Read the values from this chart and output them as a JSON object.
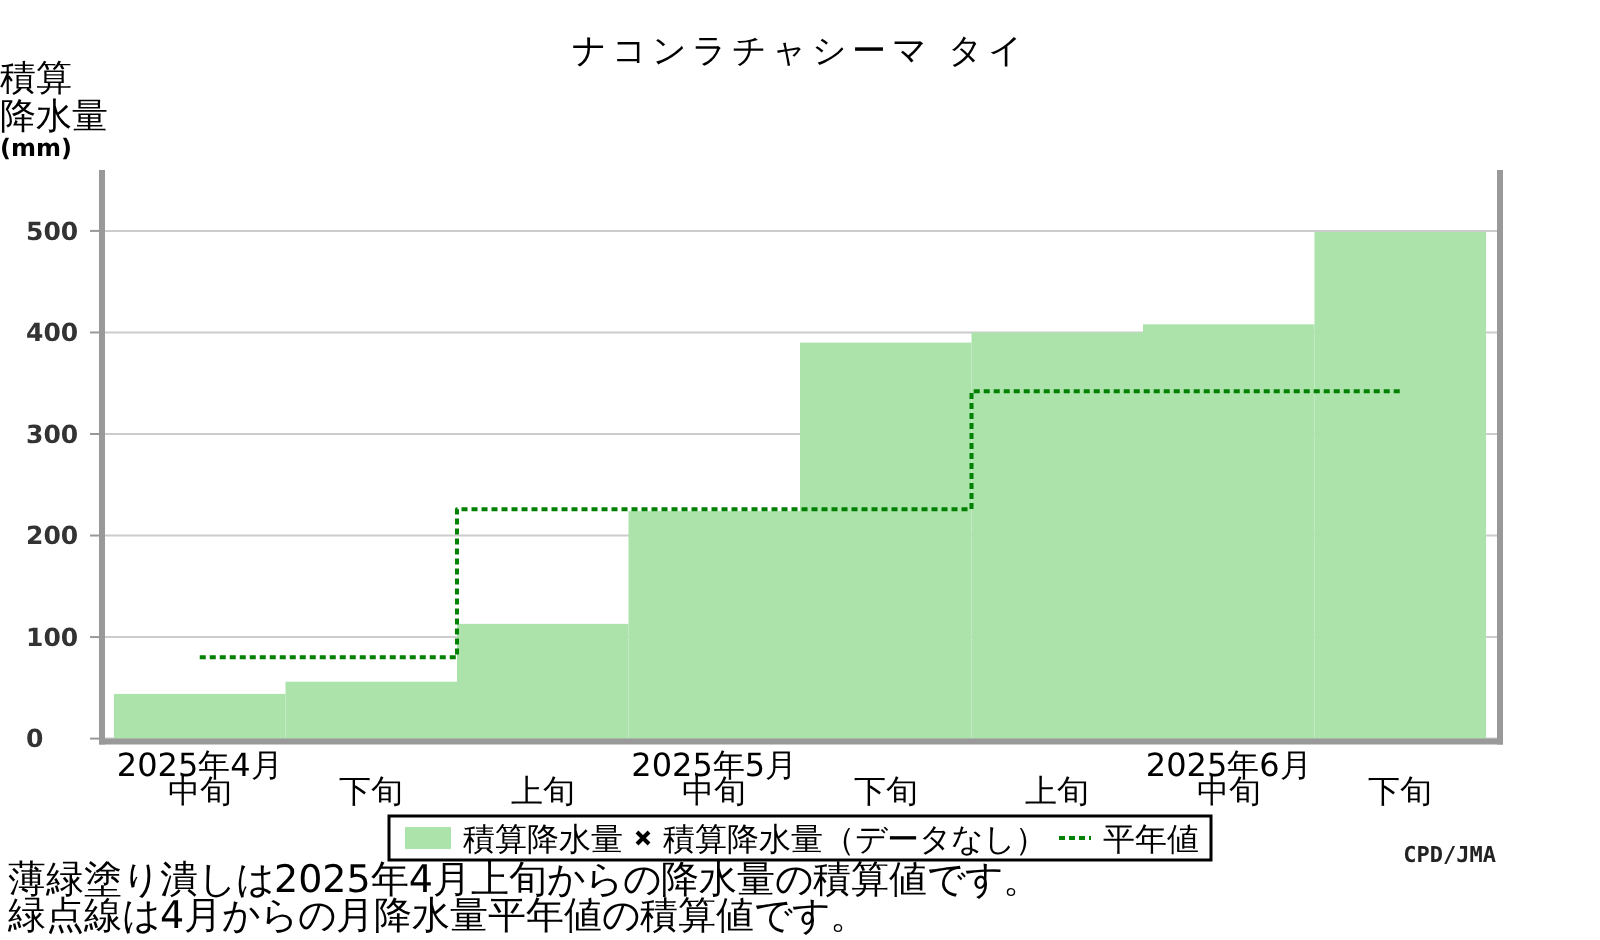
{
  "chart_data": {
    "type": "bar",
    "title": "ナコンラチャシーマ タイ",
    "ylabel": "積算降水量(mm)",
    "categories": [
      "2025年4月中旬",
      "下旬",
      "上旬",
      "2025年5月中旬",
      "下旬",
      "上旬",
      "2025年6月中旬",
      "下旬"
    ],
    "series": [
      {
        "name": "積算降水量",
        "color": "#abe3ab",
        "values": [
          44,
          56,
          113,
          224,
          390,
          400,
          408,
          499
        ]
      },
      {
        "name": "積算降水量（データなし）",
        "type": "scatter",
        "marker": "cross",
        "color": "#000000",
        "values": [
          null,
          null,
          null,
          null,
          null,
          null,
          null,
          null
        ]
      },
      {
        "name": "平年値",
        "type": "step",
        "line_style": "dotted",
        "color": "#008000",
        "values": [
          80,
          80,
          226,
          226,
          226,
          342,
          342,
          342
        ]
      }
    ],
    "ylim": [
      0,
      560
    ],
    "yticks": [
      0,
      100,
      200,
      300,
      400,
      500
    ],
    "grid": "y",
    "legend": "bottom",
    "annotations": [
      "薄緑塗り潰しは2025年4月上旬からの降水量の積算値です。",
      "緑点線は4月からの月降水量平年値の積算値です。",
      "CPD/JMA"
    ]
  }
}
